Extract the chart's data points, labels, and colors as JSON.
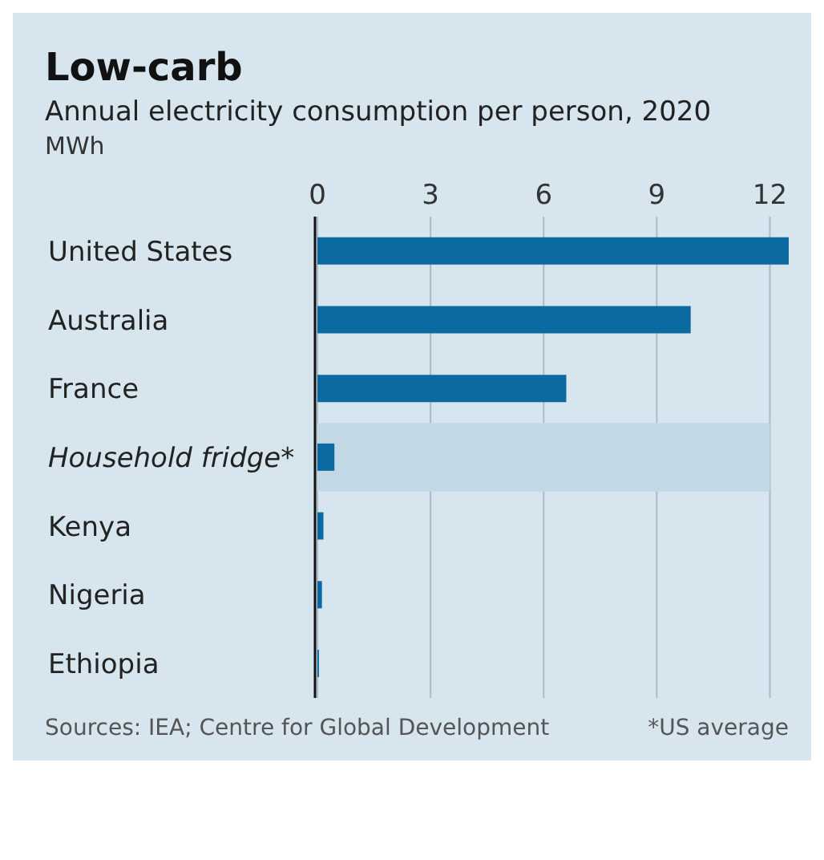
{
  "chart_data": {
    "type": "bar",
    "orientation": "horizontal",
    "title": "Low-carb",
    "subtitle": "Annual electricity consumption per person, 2020",
    "xlabel": "MWh",
    "categories": [
      "United States",
      "Australia",
      "France",
      "Household fridge*",
      "Kenya",
      "Nigeria",
      "Ethiopia"
    ],
    "values": [
      12.5,
      9.9,
      6.6,
      0.45,
      0.16,
      0.12,
      0.04
    ],
    "color": "#0b6aa0",
    "xlim": [
      0,
      12.5
    ],
    "xticks": [
      0,
      3,
      6,
      9,
      12
    ],
    "grid": "x",
    "bands": [
      {
        "axis": "y",
        "from": "Household fridge*",
        "to": "Household fridge*",
        "color": "#c2d8e5"
      }
    ],
    "annotations": [
      "Sources: IEA; Centre for Global Development",
      "*US average"
    ]
  }
}
